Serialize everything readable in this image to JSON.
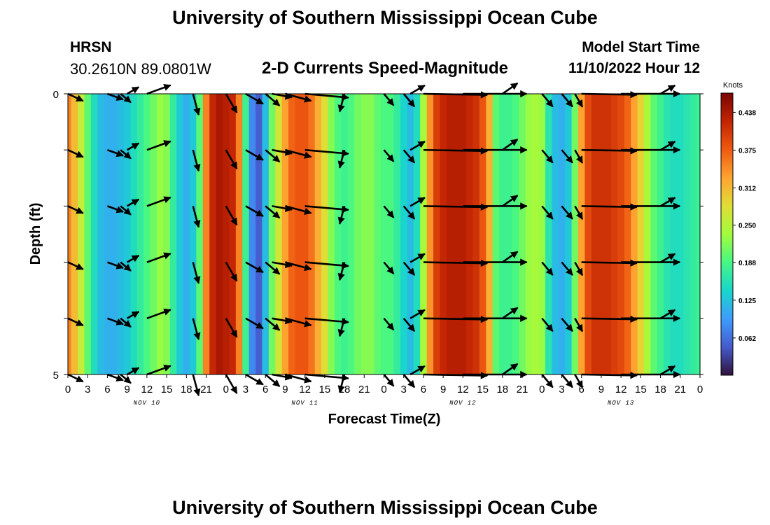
{
  "page": {
    "title": "University of Southern Mississippi Ocean Cube",
    "footer_title": "University of Southern Mississippi Ocean Cube"
  },
  "header": {
    "station": "HRSN",
    "coords": "30.2610N  89.0801W",
    "subtitle": "2-D Currents Speed-Magnitude",
    "model_label": "Model Start Time",
    "model_time": "11/10/2022 Hour 12"
  },
  "chart_data": {
    "type": "heatmap",
    "title": "2-D Currents Speed-Magnitude",
    "xlabel": "Forecast Time(Z)",
    "ylabel": "Depth (ft)",
    "x_range": [
      0,
      96
    ],
    "y_range": [
      0,
      5
    ],
    "y_ticks": [
      "0",
      "5"
    ],
    "y_minor_ticks": [
      1,
      2,
      3,
      4
    ],
    "x_tick_labels": [
      "0",
      "3",
      "6",
      "9",
      "12",
      "15",
      "18",
      "21",
      "0",
      "3",
      "6",
      "9",
      "12",
      "15",
      "18",
      "21",
      "0",
      "3",
      "6",
      "9",
      "12",
      "15",
      "18",
      "21",
      "0",
      "3",
      "6",
      "9",
      "12",
      "15",
      "18",
      "21",
      "0"
    ],
    "day_labels": [
      {
        "label": "NOV 10",
        "hour": 12
      },
      {
        "label": "NOV 11",
        "hour": 36
      },
      {
        "label": "NOV 12",
        "hour": 60
      },
      {
        "label": "NOV 13",
        "hour": 84
      }
    ],
    "colorbar": {
      "unit": "Knots",
      "range": [
        0.0,
        0.47
      ],
      "ticks": [
        "0.438",
        "0.375",
        "0.312",
        "0.250",
        "0.188",
        "0.125",
        "0.062"
      ],
      "tick_values": [
        0.438,
        0.375,
        0.312,
        0.25,
        0.188,
        0.125,
        0.062
      ]
    },
    "speed_by_hour": [
      {
        "h": 0,
        "v": 0.35
      },
      {
        "h": 1,
        "v": 0.31
      },
      {
        "h": 2,
        "v": 0.26
      },
      {
        "h": 3,
        "v": 0.2
      },
      {
        "h": 4,
        "v": 0.15
      },
      {
        "h": 5,
        "v": 0.12
      },
      {
        "h": 6,
        "v": 0.11
      },
      {
        "h": 7,
        "v": 0.11
      },
      {
        "h": 8,
        "v": 0.12
      },
      {
        "h": 9,
        "v": 0.13
      },
      {
        "h": 10,
        "v": 0.15
      },
      {
        "h": 11,
        "v": 0.17
      },
      {
        "h": 12,
        "v": 0.19
      },
      {
        "h": 13,
        "v": 0.21
      },
      {
        "h": 14,
        "v": 0.23
      },
      {
        "h": 15,
        "v": 0.22
      },
      {
        "h": 16,
        "v": 0.17
      },
      {
        "h": 17,
        "v": 0.13
      },
      {
        "h": 18,
        "v": 0.11
      },
      {
        "h": 19,
        "v": 0.13
      },
      {
        "h": 20,
        "v": 0.2
      },
      {
        "h": 21,
        "v": 0.35
      },
      {
        "h": 22,
        "v": 0.42
      },
      {
        "h": 23,
        "v": 0.44
      },
      {
        "h": 24,
        "v": 0.43
      },
      {
        "h": 25,
        "v": 0.42
      },
      {
        "h": 26,
        "v": 0.35
      },
      {
        "h": 27,
        "v": 0.18
      },
      {
        "h": 28,
        "v": 0.08
      },
      {
        "h": 29,
        "v": 0.05
      },
      {
        "h": 30,
        "v": 0.12
      },
      {
        "h": 31,
        "v": 0.21
      },
      {
        "h": 32,
        "v": 0.27
      },
      {
        "h": 33,
        "v": 0.33
      },
      {
        "h": 34,
        "v": 0.37
      },
      {
        "h": 35,
        "v": 0.38
      },
      {
        "h": 36,
        "v": 0.38
      },
      {
        "h": 37,
        "v": 0.36
      },
      {
        "h": 38,
        "v": 0.32
      },
      {
        "h": 39,
        "v": 0.28
      },
      {
        "h": 40,
        "v": 0.22
      },
      {
        "h": 41,
        "v": 0.19
      },
      {
        "h": 42,
        "v": 0.18
      },
      {
        "h": 43,
        "v": 0.19
      },
      {
        "h": 44,
        "v": 0.21
      },
      {
        "h": 45,
        "v": 0.22
      },
      {
        "h": 46,
        "v": 0.22
      },
      {
        "h": 47,
        "v": 0.2
      },
      {
        "h": 48,
        "v": 0.19
      },
      {
        "h": 49,
        "v": 0.19
      },
      {
        "h": 50,
        "v": 0.17
      },
      {
        "h": 51,
        "v": 0.14
      },
      {
        "h": 52,
        "v": 0.12
      },
      {
        "h": 53,
        "v": 0.15
      },
      {
        "h": 54,
        "v": 0.24
      },
      {
        "h": 55,
        "v": 0.34
      },
      {
        "h": 56,
        "v": 0.4
      },
      {
        "h": 57,
        "v": 0.42
      },
      {
        "h": 58,
        "v": 0.43
      },
      {
        "h": 59,
        "v": 0.43
      },
      {
        "h": 60,
        "v": 0.43
      },
      {
        "h": 61,
        "v": 0.42
      },
      {
        "h": 62,
        "v": 0.41
      },
      {
        "h": 63,
        "v": 0.38
      },
      {
        "h": 64,
        "v": 0.32
      },
      {
        "h": 65,
        "v": 0.2
      },
      {
        "h": 66,
        "v": 0.18
      },
      {
        "h": 67,
        "v": 0.18
      },
      {
        "h": 68,
        "v": 0.19
      },
      {
        "h": 69,
        "v": 0.21
      },
      {
        "h": 70,
        "v": 0.23
      },
      {
        "h": 71,
        "v": 0.24
      },
      {
        "h": 72,
        "v": 0.23
      },
      {
        "h": 73,
        "v": 0.16
      },
      {
        "h": 74,
        "v": 0.12
      },
      {
        "h": 75,
        "v": 0.11
      },
      {
        "h": 76,
        "v": 0.13
      },
      {
        "h": 77,
        "v": 0.21
      },
      {
        "h": 78,
        "v": 0.33
      },
      {
        "h": 79,
        "v": 0.39
      },
      {
        "h": 80,
        "v": 0.41
      },
      {
        "h": 81,
        "v": 0.41
      },
      {
        "h": 82,
        "v": 0.41
      },
      {
        "h": 83,
        "v": 0.4
      },
      {
        "h": 84,
        "v": 0.39
      },
      {
        "h": 85,
        "v": 0.37
      },
      {
        "h": 86,
        "v": 0.33
      },
      {
        "h": 87,
        "v": 0.29
      },
      {
        "h": 88,
        "v": 0.24
      },
      {
        "h": 89,
        "v": 0.2
      },
      {
        "h": 90,
        "v": 0.18
      },
      {
        "h": 91,
        "v": 0.16
      },
      {
        "h": 92,
        "v": 0.15
      },
      {
        "h": 93,
        "v": 0.15
      },
      {
        "h": 94,
        "v": 0.16
      },
      {
        "h": 95,
        "v": 0.17
      },
      {
        "h": 96,
        "v": 0.18
      }
    ],
    "vectors": [
      {
        "hour": 0,
        "dir": 115,
        "len": 1
      },
      {
        "hour": 6,
        "dir": 110,
        "len": 1
      },
      {
        "hour": 8,
        "dir": 130,
        "len": 0.8
      },
      {
        "hour": 9,
        "dir": 60,
        "len": 0.8
      },
      {
        "hour": 12,
        "dir": 70,
        "len": 1.5
      },
      {
        "hour": 19,
        "dir": 165,
        "len": 1.3
      },
      {
        "hour": 24,
        "dir": 150,
        "len": 1.3
      },
      {
        "hour": 27,
        "dir": 120,
        "len": 1.2
      },
      {
        "hour": 30,
        "dir": 130,
        "len": 1.1
      },
      {
        "hour": 31,
        "dir": 100,
        "len": 1.2
      },
      {
        "hour": 33,
        "dir": 105,
        "len": 1.6
      },
      {
        "hour": 36,
        "dir": 95,
        "len": 2.6
      },
      {
        "hour": 42,
        "dir": 195,
        "len": 1.1
      },
      {
        "hour": 48,
        "dir": 140,
        "len": 0.9
      },
      {
        "hour": 51,
        "dir": 140,
        "len": 1
      },
      {
        "hour": 52,
        "dir": 60,
        "len": 1
      },
      {
        "hour": 54,
        "dir": 91,
        "len": 3.8
      },
      {
        "hour": 60,
        "dir": 90,
        "len": 3.8
      },
      {
        "hour": 66,
        "dir": 55,
        "len": 1.1
      },
      {
        "hour": 72,
        "dir": 140,
        "len": 1
      },
      {
        "hour": 75,
        "dir": 140,
        "len": 1
      },
      {
        "hour": 77,
        "dir": 150,
        "len": 0.9
      },
      {
        "hour": 78,
        "dir": 91,
        "len": 3.3
      },
      {
        "hour": 84,
        "dir": 90,
        "len": 3.5
      },
      {
        "hour": 90,
        "dir": 60,
        "len": 1
      }
    ],
    "vector_depths": [
      0,
      1,
      2,
      3,
      4,
      5
    ]
  }
}
